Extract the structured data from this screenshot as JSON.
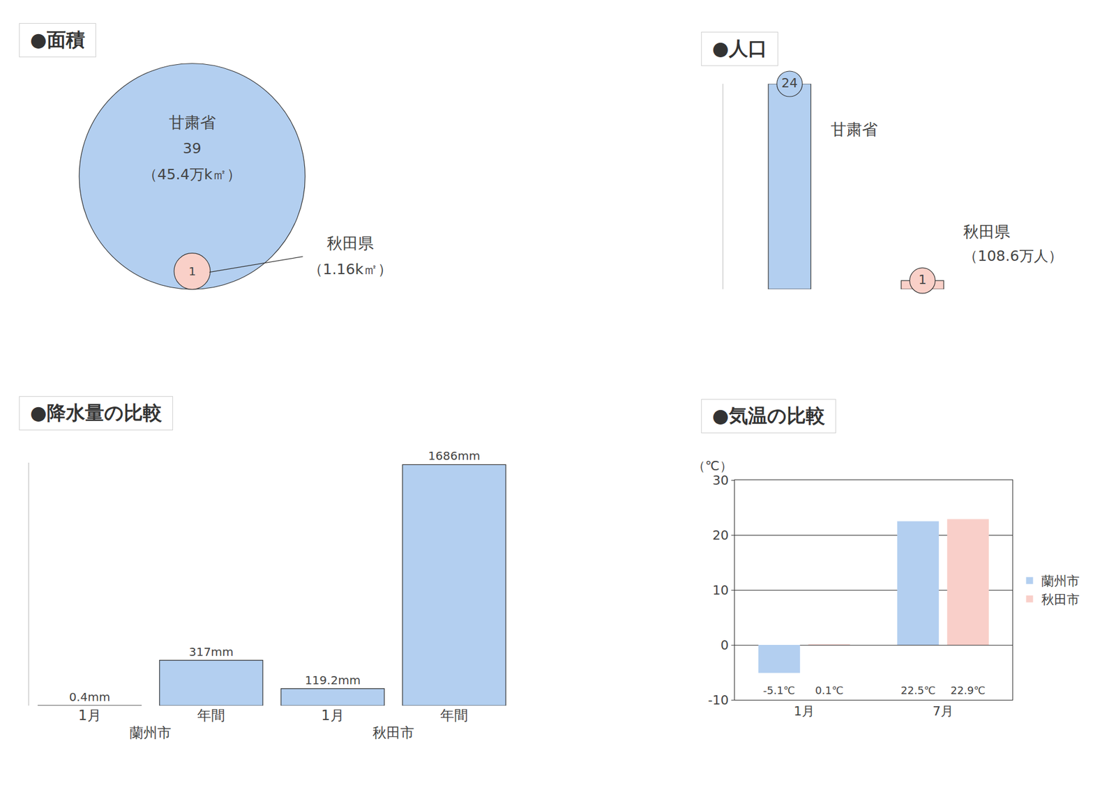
{
  "chart_data": [
    {
      "type": "circle",
      "title": "●面積",
      "categories": [
        "甘粛省",
        "秋田県"
      ],
      "values": [
        39,
        1
      ],
      "annotations": [
        {
          "category": "甘粛省",
          "text": "（45.4万k㎡）"
        },
        {
          "category": "秋田県",
          "text": "（1.16k㎡）"
        }
      ],
      "colors": [
        "#b3cff0",
        "#f9d0c8"
      ],
      "data_labels": true
    },
    {
      "type": "bar",
      "title": "●人口",
      "categories": [
        "甘粛省",
        "秋田県"
      ],
      "values": [
        24,
        1
      ],
      "annotations": [
        {
          "category": "秋田県",
          "text": "（108.6万人）"
        }
      ],
      "colors": [
        "#b3cff0",
        "#f9d0c8"
      ],
      "ylim": [
        0,
        24
      ],
      "tick_labels": false,
      "data_labels": true
    },
    {
      "type": "bar",
      "title": "●降水量の比較",
      "categories": [
        "1月",
        "年間"
      ],
      "series": [
        {
          "name": "蘭州市",
          "values": [
            0.4,
            317
          ],
          "value_labels": [
            "0.4mm",
            "317mm"
          ]
        },
        {
          "name": "秋田市",
          "values": [
            119.2,
            1686
          ],
          "value_labels": [
            "119.2mm",
            "1686mm"
          ]
        }
      ],
      "color": "#b3cff0",
      "ylim": [
        0,
        1700
      ],
      "tick_labels": "x",
      "data_labels": true
    },
    {
      "type": "bar",
      "title": "●気温の比較",
      "ylabel": "（℃）",
      "categories": [
        "1月",
        "7月"
      ],
      "series": [
        {
          "name": "蘭州市",
          "color": "#b3cff0",
          "values": [
            -5.1,
            22.5
          ],
          "value_labels": [
            "-5.1℃",
            "22.5℃"
          ]
        },
        {
          "name": "秋田市",
          "color": "#f9cfc9",
          "values": [
            0.1,
            22.9
          ],
          "value_labels": [
            "0.1℃",
            "22.9℃"
          ]
        }
      ],
      "ylim": [
        -10,
        30
      ],
      "yticks": [
        -10,
        0,
        10,
        20,
        30
      ],
      "grid": true,
      "legend": "right",
      "data_labels": true
    }
  ]
}
